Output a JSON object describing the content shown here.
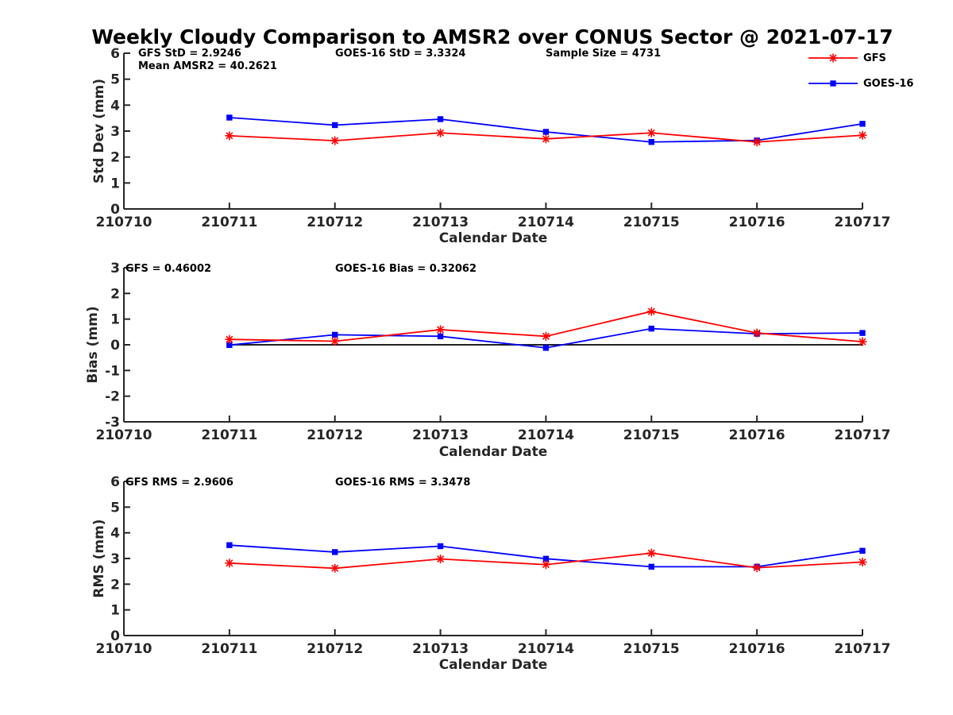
{
  "figure_title": "Weekly Cloudy Comparison to AMSR2 over CONUS Sector @ 2021-07-17",
  "legend": [
    {
      "label": "GFS",
      "color": "#ff0000",
      "marker": "asterisk"
    },
    {
      "label": "GOES-16",
      "color": "#0000ff",
      "marker": "square"
    }
  ],
  "chart_data": [
    {
      "type": "line",
      "x": [
        "210710",
        "210711",
        "210712",
        "210713",
        "210714",
        "210715",
        "210716",
        "210717"
      ],
      "xlabel": "Calendar Date",
      "ylabel": "Std Dev (mm)",
      "ylim": [
        0,
        6
      ],
      "yticks": [
        "0",
        "1",
        "2",
        "3",
        "4",
        "5",
        "6"
      ],
      "annotations": [
        "GFS StD = 2.9246",
        "Mean AMSR2 = 40.2621",
        "GOES-16 StD = 3.3324",
        "Sample Size = 4731"
      ],
      "series": [
        {
          "name": "GFS",
          "color": "#ff0000",
          "marker": "asterisk",
          "values": [
            null,
            2.82,
            2.63,
            2.93,
            2.7,
            2.93,
            2.58,
            2.84
          ]
        },
        {
          "name": "GOES-16",
          "color": "#0000ff",
          "marker": "square",
          "values": [
            null,
            3.52,
            3.23,
            3.46,
            2.97,
            2.58,
            2.64,
            3.28
          ]
        }
      ]
    },
    {
      "type": "line",
      "x": [
        "210710",
        "210711",
        "210712",
        "210713",
        "210714",
        "210715",
        "210716",
        "210717"
      ],
      "xlabel": "Calendar Date",
      "ylabel": "Bias (mm)",
      "ylim": [
        -3,
        3
      ],
      "yticks": [
        "-3",
        "-2",
        "-1",
        "0",
        "1",
        "2",
        "3"
      ],
      "reference_line": 0,
      "annotations": [
        "GFS = 0.46002",
        "GOES-16 Bias  = 0.32062"
      ],
      "series": [
        {
          "name": "GFS",
          "color": "#ff0000",
          "marker": "asterisk",
          "values": [
            null,
            0.21,
            0.14,
            0.59,
            0.33,
            1.3,
            0.46,
            0.12
          ]
        },
        {
          "name": "GOES-16",
          "color": "#0000ff",
          "marker": "square",
          "values": [
            null,
            -0.01,
            0.39,
            0.33,
            -0.12,
            0.63,
            0.43,
            0.46
          ]
        }
      ]
    },
    {
      "type": "line",
      "x": [
        "210710",
        "210711",
        "210712",
        "210713",
        "210714",
        "210715",
        "210716",
        "210717"
      ],
      "xlabel": "Calendar Date",
      "ylabel": "RMS (mm)",
      "ylim": [
        0,
        6
      ],
      "yticks": [
        "0",
        "1",
        "2",
        "3",
        "4",
        "5",
        "6"
      ],
      "annotations": [
        "GFS RMS = 2.9606",
        "GOES-16 RMS = 3.3478"
      ],
      "series": [
        {
          "name": "GFS",
          "color": "#ff0000",
          "marker": "asterisk",
          "values": [
            null,
            2.82,
            2.62,
            2.98,
            2.76,
            3.21,
            2.64,
            2.86
          ]
        },
        {
          "name": "GOES-16",
          "color": "#0000ff",
          "marker": "square",
          "values": [
            null,
            3.52,
            3.25,
            3.48,
            2.99,
            2.68,
            2.68,
            3.3
          ]
        }
      ]
    }
  ]
}
